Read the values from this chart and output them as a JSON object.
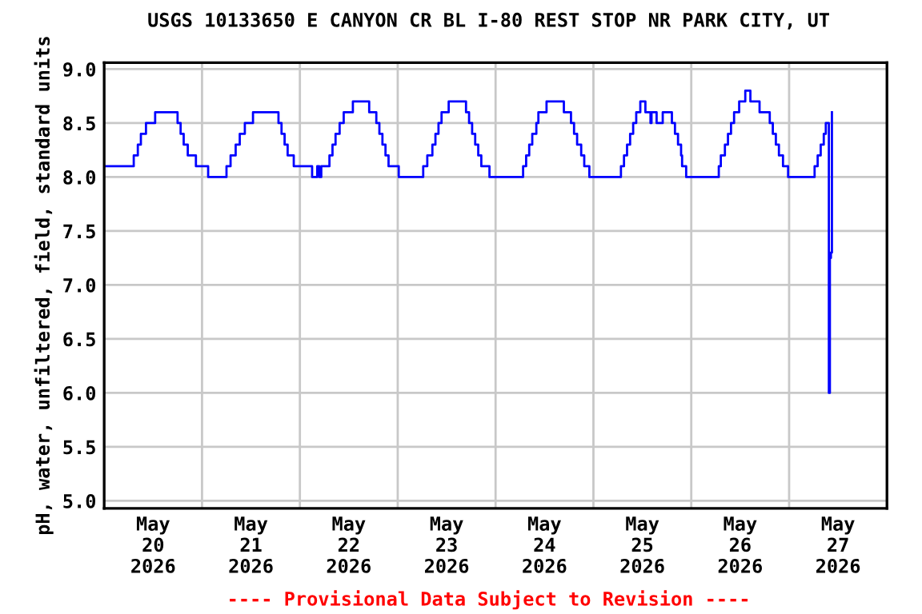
{
  "chart_data": {
    "type": "step",
    "title": "USGS 10133650 E CANYON CR BL I-80 REST STOP NR PARK CITY, UT",
    "ylabel": "pH, water, unfiltered, field, standard units",
    "annotations": [
      "---- Provisional Data Subject to Revision ----"
    ],
    "x": [
      "2026-05-20T00:00",
      "2026-05-20T07:15",
      "2026-05-20T08:15",
      "2026-05-20T09:00",
      "2026-05-20T10:15",
      "2026-05-20T12:30",
      "2026-05-20T18:00",
      "2026-05-20T18:45",
      "2026-05-20T19:30",
      "2026-05-20T20:30",
      "2026-05-20T22:30",
      "2026-05-21T01:30",
      "2026-05-21T06:00",
      "2026-05-21T07:00",
      "2026-05-21T08:15",
      "2026-05-21T09:15",
      "2026-05-21T10:30",
      "2026-05-21T12:30",
      "2026-05-21T18:45",
      "2026-05-21T19:30",
      "2026-05-21T20:15",
      "2026-05-21T21:00",
      "2026-05-21T22:30",
      "2026-05-22T03:00",
      "2026-05-22T04:15",
      "2026-05-22T04:45",
      "2026-05-22T05:15",
      "2026-05-22T07:15",
      "2026-05-22T08:00",
      "2026-05-22T08:45",
      "2026-05-22T09:45",
      "2026-05-22T10:45",
      "2026-05-22T13:00",
      "2026-05-22T17:00",
      "2026-05-22T18:45",
      "2026-05-22T19:30",
      "2026-05-22T20:15",
      "2026-05-22T21:00",
      "2026-05-22T21:45",
      "2026-05-23T00:15",
      "2026-05-23T06:15",
      "2026-05-23T07:15",
      "2026-05-23T08:30",
      "2026-05-23T09:15",
      "2026-05-23T10:00",
      "2026-05-23T10:45",
      "2026-05-23T12:30",
      "2026-05-23T16:45",
      "2026-05-23T17:30",
      "2026-05-23T18:15",
      "2026-05-23T19:00",
      "2026-05-23T19:45",
      "2026-05-23T20:30",
      "2026-05-23T22:30",
      "2026-05-24T06:45",
      "2026-05-24T07:30",
      "2026-05-24T08:15",
      "2026-05-24T09:00",
      "2026-05-24T10:00",
      "2026-05-24T10:30",
      "2026-05-24T12:30",
      "2026-05-24T16:45",
      "2026-05-24T18:30",
      "2026-05-24T19:15",
      "2026-05-24T20:00",
      "2026-05-24T21:00",
      "2026-05-24T21:45",
      "2026-05-24T23:00",
      "2026-05-25T06:45",
      "2026-05-25T07:30",
      "2026-05-25T08:15",
      "2026-05-25T09:00",
      "2026-05-25T09:45",
      "2026-05-25T10:30",
      "2026-05-25T11:30",
      "2026-05-25T12:45",
      "2026-05-25T14:00",
      "2026-05-25T14:15",
      "2026-05-25T15:30",
      "2026-05-25T17:00",
      "2026-05-25T19:15",
      "2026-05-25T20:00",
      "2026-05-25T20:45",
      "2026-05-25T21:30",
      "2026-05-25T21:45",
      "2026-05-25T22:45",
      "2026-05-26T06:45",
      "2026-05-26T07:15",
      "2026-05-26T08:15",
      "2026-05-26T09:00",
      "2026-05-26T09:45",
      "2026-05-26T10:30",
      "2026-05-26T11:45",
      "2026-05-26T13:15",
      "2026-05-26T14:30",
      "2026-05-26T16:45",
      "2026-05-26T19:15",
      "2026-05-26T20:00",
      "2026-05-26T20:45",
      "2026-05-26T21:30",
      "2026-05-26T22:30",
      "2026-05-26T23:45",
      "2026-05-27T06:15",
      "2026-05-27T07:00",
      "2026-05-27T07:45",
      "2026-05-27T08:30",
      "2026-05-27T09:00",
      "2026-05-27T09:45",
      "2026-05-27T10:00",
      "2026-05-27T10:15",
      "2026-05-27T10:30"
    ],
    "series": [
      {
        "color": "#0000ff",
        "values": [
          8.1,
          8.2,
          8.3,
          8.4,
          8.5,
          8.6,
          8.5,
          8.4,
          8.3,
          8.2,
          8.1,
          8.0,
          8.1,
          8.2,
          8.3,
          8.4,
          8.5,
          8.6,
          8.5,
          8.4,
          8.3,
          8.2,
          8.1,
          8.0,
          8.1,
          8.0,
          8.1,
          8.2,
          8.3,
          8.4,
          8.5,
          8.6,
          8.7,
          8.6,
          8.5,
          8.4,
          8.3,
          8.2,
          8.1,
          8.0,
          8.1,
          8.2,
          8.3,
          8.4,
          8.5,
          8.6,
          8.7,
          8.6,
          8.5,
          8.4,
          8.3,
          8.2,
          8.1,
          8.0,
          8.1,
          8.2,
          8.3,
          8.4,
          8.5,
          8.6,
          8.7,
          8.6,
          8.5,
          8.4,
          8.3,
          8.2,
          8.1,
          8.0,
          8.1,
          8.2,
          8.3,
          8.4,
          8.5,
          8.6,
          8.7,
          8.6,
          8.5,
          8.6,
          8.5,
          8.6,
          8.5,
          8.4,
          8.3,
          8.2,
          8.1,
          8.0,
          8.1,
          8.2,
          8.3,
          8.4,
          8.5,
          8.6,
          8.7,
          8.8,
          8.7,
          8.6,
          8.5,
          8.4,
          8.3,
          8.2,
          8.1,
          8.0,
          8.1,
          8.2,
          8.3,
          8.4,
          8.5,
          6.0,
          7.25,
          7.3,
          8.6
        ]
      }
    ],
    "xlim": [
      "2026-05-20T00:00",
      "2026-05-28T00:00"
    ],
    "xticks": [
      {
        "value": "2026-05-20T12:00",
        "label": "May\n20\n2026"
      },
      {
        "value": "2026-05-21T12:00",
        "label": "May\n21\n2026"
      },
      {
        "value": "2026-05-22T12:00",
        "label": "May\n22\n2026"
      },
      {
        "value": "2026-05-23T12:00",
        "label": "May\n23\n2026"
      },
      {
        "value": "2026-05-24T12:00",
        "label": "May\n24\n2026"
      },
      {
        "value": "2026-05-25T12:00",
        "label": "May\n25\n2026"
      },
      {
        "value": "2026-05-26T12:00",
        "label": "May\n26\n2026"
      },
      {
        "value": "2026-05-27T12:00",
        "label": "May\n27\n2026"
      },
      {
        "value": "2026-05-21T00:00",
        "label": null
      },
      {
        "value": "2026-05-22T00:00",
        "label": null
      },
      {
        "value": "2026-05-23T00:00",
        "label": null
      },
      {
        "value": "2026-05-24T00:00",
        "label": null
      },
      {
        "value": "2026-05-25T00:00",
        "label": null
      },
      {
        "value": "2026-05-26T00:00",
        "label": null
      },
      {
        "value": "2026-05-27T00:00",
        "label": null
      }
    ],
    "ylim": [
      4.93,
      9.06
    ],
    "yticks": [
      {
        "value": 5,
        "label": "5.0"
      },
      {
        "value": 5.5,
        "label": "5.5"
      },
      {
        "value": 6,
        "label": "6.0"
      },
      {
        "value": 6.5,
        "label": "6.5"
      },
      {
        "value": 7,
        "label": "7.0"
      },
      {
        "value": 7.5,
        "label": "7.5"
      },
      {
        "value": 8,
        "label": "8.0"
      },
      {
        "value": 8.5,
        "label": "8.5"
      },
      {
        "value": 9,
        "label": "9.0"
      }
    ],
    "grid": true,
    "legend": false
  }
}
